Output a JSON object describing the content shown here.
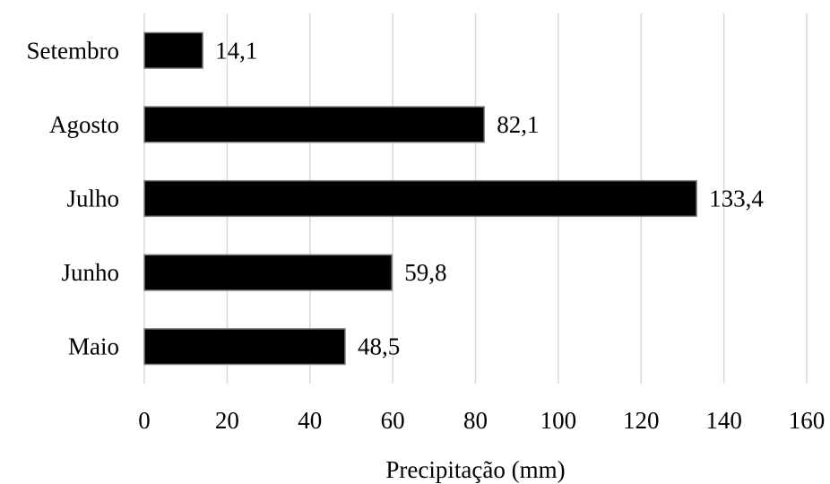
{
  "chart_data": {
    "type": "bar",
    "orientation": "horizontal",
    "categories": [
      "Maio",
      "Junho",
      "Julho",
      "Agosto",
      "Setembro"
    ],
    "values": [
      48.5,
      59.8,
      133.4,
      82.1,
      14.1
    ],
    "data_labels": [
      "48,5",
      "59,8",
      "133,4",
      "82,1",
      "14,1"
    ],
    "xlabel": "Precipitação (mm)",
    "ylabel": "",
    "xlim": [
      0,
      160
    ],
    "x_ticks": [
      0,
      20,
      40,
      60,
      80,
      100,
      120,
      140,
      160
    ],
    "x_tick_labels": [
      "0",
      "20",
      "40",
      "60",
      "80",
      "100",
      "120",
      "140",
      "160"
    ],
    "grid": "vertical",
    "legend": "none",
    "bar_color": "#000000",
    "bar_edge_color": "#7f7f7f",
    "grid_color": "#d9d9d9"
  }
}
